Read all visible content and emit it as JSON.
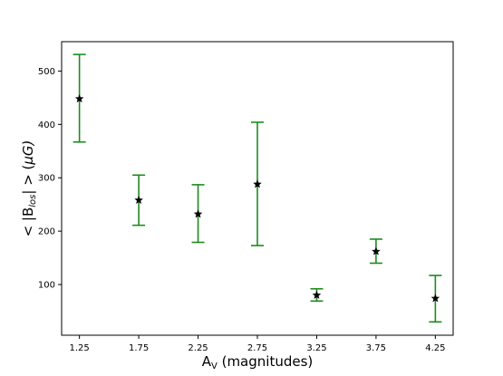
{
  "chart_data": {
    "type": "scatter",
    "title": "",
    "xlabel": {
      "base": "A",
      "sub": "V",
      "rest": " (magnitudes)"
    },
    "ylabel": {
      "pre": "< |B",
      "sub": "los",
      "mid": "| > (",
      "mu": "μ",
      "post": "G)"
    },
    "x": [
      1.25,
      1.75,
      2.25,
      2.75,
      3.25,
      3.75,
      4.25
    ],
    "y": [
      448,
      258,
      232,
      288,
      80,
      162,
      74
    ],
    "yerr_low": [
      367,
      211,
      179,
      173,
      69,
      140,
      30
    ],
    "yerr_high": [
      531,
      305,
      287,
      404,
      92,
      185,
      117
    ],
    "xticks": [
      "1.25",
      "1.75",
      "2.25",
      "2.75",
      "3.25",
      "3.75",
      "4.25"
    ],
    "yticks": [
      "100",
      "200",
      "300",
      "400",
      "500"
    ],
    "ytick_values": [
      100,
      200,
      300,
      400,
      500
    ],
    "xlim": [
      1.1,
      4.4
    ],
    "ylim": [
      5,
      555
    ],
    "marker": "star",
    "marker_color": "#000000",
    "errorbar_color": "#1f8a1f",
    "grid": false,
    "legend": "none"
  }
}
